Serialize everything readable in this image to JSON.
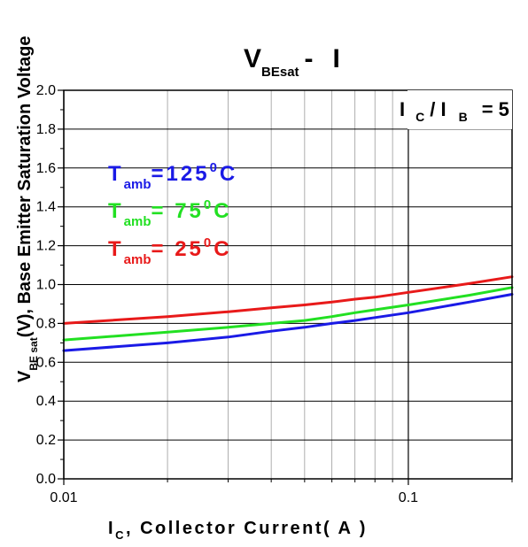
{
  "chart_data": {
    "type": "line",
    "title": "V - I",
    "title_parts": {
      "v_main": "V",
      "v_sub": "BEsat",
      "dash": "-",
      "i_main": "I"
    },
    "ylabel": {
      "v_main": "V",
      "v_sub": "BE sat",
      "rest": "(V), Base Emitter Saturation Voltage"
    },
    "xlabel": {
      "i_main": "I",
      "i_sub": "C",
      "rest": ", Collector Current( A )"
    },
    "x_scale": "log",
    "xlim": [
      0.01,
      0.2
    ],
    "ylim": [
      0.0,
      2.0
    ],
    "grid": true,
    "x_ticks": [
      {
        "value": 0.01,
        "label": "0.01"
      },
      {
        "value": 0.1,
        "label": "0.1"
      }
    ],
    "y_ticks": [
      {
        "value": 0.0,
        "label": "0.0"
      },
      {
        "value": 0.2,
        "label": "0.2"
      },
      {
        "value": 0.4,
        "label": "0.4"
      },
      {
        "value": 0.6,
        "label": "0.6"
      },
      {
        "value": 0.8,
        "label": "0.8"
      },
      {
        "value": 1.0,
        "label": "1.0"
      },
      {
        "value": 1.2,
        "label": "1.2"
      },
      {
        "value": 1.4,
        "label": "1.4"
      },
      {
        "value": 1.6,
        "label": "1.6"
      },
      {
        "value": 1.8,
        "label": "1.8"
      },
      {
        "value": 2.0,
        "label": "2.0"
      }
    ],
    "annotation": {
      "text": "I C / I B = 5",
      "parts": [
        "I",
        "C",
        "/ I",
        "B",
        "= 5"
      ]
    },
    "legend_position": "top-left",
    "series": [
      {
        "name": "Tamb =125 0C",
        "legend": {
          "main": "T",
          "sub": "amb",
          "value": "=125",
          "sup": "0",
          "unit": "C"
        },
        "color": "#1a1ae6",
        "x": [
          0.01,
          0.02,
          0.03,
          0.04,
          0.05,
          0.06,
          0.07,
          0.08,
          0.1,
          0.15,
          0.2
        ],
        "y": [
          0.66,
          0.7,
          0.73,
          0.76,
          0.78,
          0.8,
          0.815,
          0.83,
          0.855,
          0.91,
          0.95
        ]
      },
      {
        "name": "Tamb = 75 0C",
        "legend": {
          "main": "T",
          "sub": "amb",
          "value": "= 75",
          "sup": "0",
          "unit": "C"
        },
        "color": "#22e022",
        "x": [
          0.01,
          0.02,
          0.03,
          0.04,
          0.05,
          0.06,
          0.07,
          0.08,
          0.1,
          0.15,
          0.2
        ],
        "y": [
          0.715,
          0.755,
          0.78,
          0.8,
          0.815,
          0.835,
          0.855,
          0.87,
          0.895,
          0.945,
          0.985
        ]
      },
      {
        "name": "Tamb = 25 0C",
        "legend": {
          "main": "T",
          "sub": "amb",
          "value": "= 25",
          "sup": "0",
          "unit": "C"
        },
        "color": "#e81a1a",
        "x": [
          0.01,
          0.02,
          0.03,
          0.04,
          0.05,
          0.06,
          0.07,
          0.08,
          0.1,
          0.15,
          0.2
        ],
        "y": [
          0.8,
          0.835,
          0.86,
          0.88,
          0.895,
          0.91,
          0.925,
          0.935,
          0.96,
          1.005,
          1.04
        ]
      }
    ]
  }
}
